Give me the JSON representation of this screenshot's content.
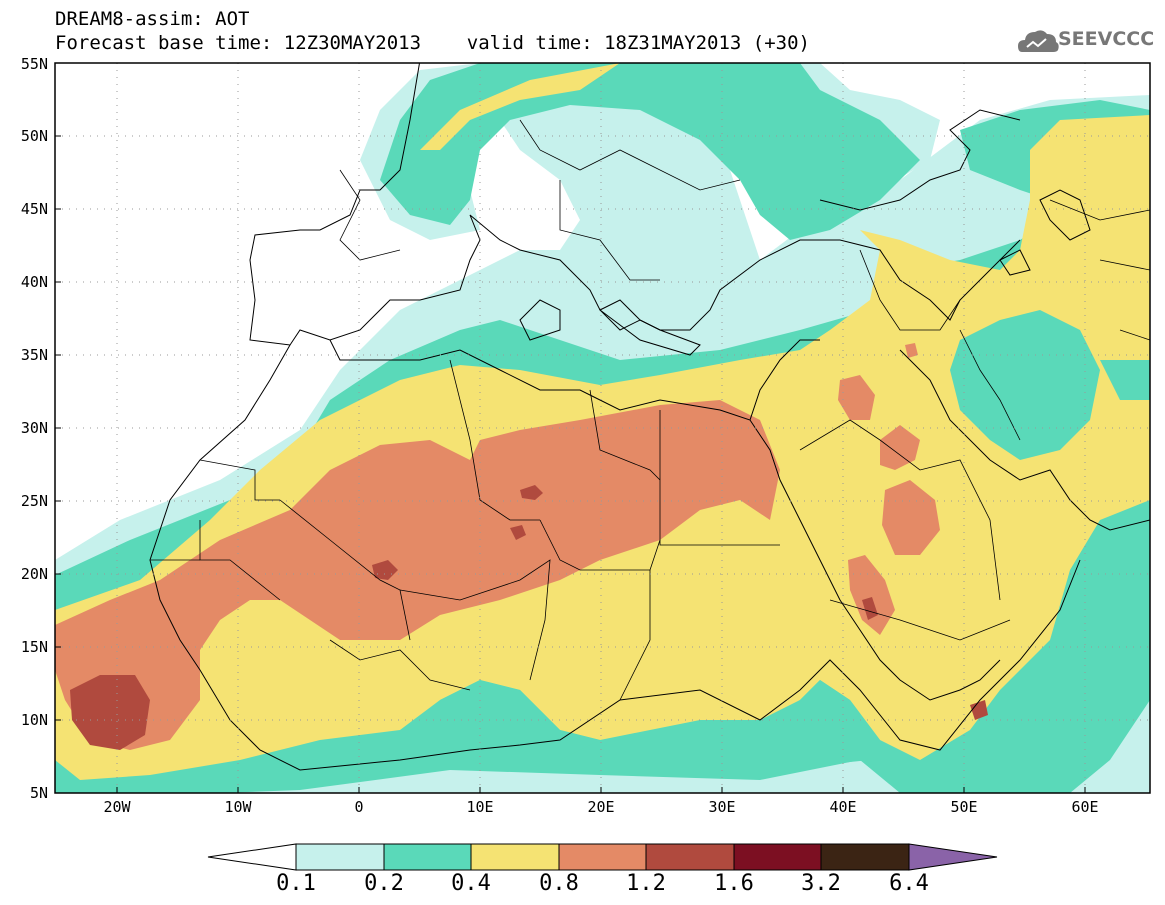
{
  "header": {
    "line1": "DREAM8-assim: AOT",
    "line2": "Forecast base time: 12Z30MAY2013    valid time: 18Z31MAY2013 (+30)"
  },
  "logo": {
    "text": "SEEVCCC",
    "icon": "cloud-icon"
  },
  "axes": {
    "lat_labels": [
      "55N",
      "50N",
      "45N",
      "40N",
      "35N",
      "30N",
      "25N",
      "20N",
      "15N",
      "10N",
      "5N"
    ],
    "lon_labels": [
      "20W",
      "10W",
      "0",
      "10E",
      "20E",
      "30E",
      "40E",
      "50E",
      "60E"
    ]
  },
  "colorbar": {
    "labels": [
      "0.1",
      "0.2",
      "0.4",
      "0.8",
      "1.2",
      "1.6",
      "3.2",
      "6.4"
    ],
    "colors": [
      "#c6f1ec",
      "#5ad9b9",
      "#f5e373",
      "#e48a66",
      "#b04a3e",
      "#7c0f22",
      "#3b2414",
      "#8a63a8"
    ],
    "under_color": "#ffffff"
  },
  "colors": {
    "c01": "#c6f1ec",
    "c02": "#5ad9b9",
    "c04": "#f5e373",
    "c08": "#e48a66",
    "c12": "#b04a3e"
  }
}
